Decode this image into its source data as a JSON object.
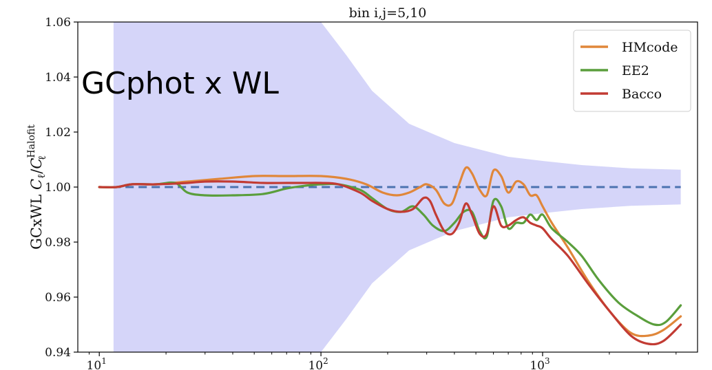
{
  "overlay_text": "GCphot x WL",
  "chart_data": {
    "type": "line",
    "title": "bin i,j=5,10",
    "xlabel": "",
    "ylabel": "GCxWL C_ℓ/C_ℓ^Halofit",
    "ylabel_parts": {
      "prefix": "GCxWL ",
      "c": "C",
      "l": "ℓ",
      "slash": "/",
      "sup": "Halofit"
    },
    "xscale": "log",
    "xlim": [
      8,
      5000
    ],
    "ylim": [
      0.94,
      1.06
    ],
    "x_ticks": [
      {
        "value": 10,
        "base": "10",
        "exp": "1"
      },
      {
        "value": 100,
        "base": "10",
        "exp": "2"
      },
      {
        "value": 1000,
        "base": "10",
        "exp": "3"
      }
    ],
    "y_ticks": [
      {
        "value": 0.94,
        "label": "0.94"
      },
      {
        "value": 0.96,
        "label": "0.96"
      },
      {
        "value": 0.98,
        "label": "0.98"
      },
      {
        "value": 1.0,
        "label": "1.00"
      },
      {
        "value": 1.02,
        "label": "1.02"
      },
      {
        "value": 1.04,
        "label": "1.04"
      },
      {
        "value": 1.06,
        "label": "1.06"
      }
    ],
    "reference_line": {
      "y": 1.0,
      "x_range": [
        10,
        4200
      ],
      "color": "#4c72b0",
      "style": "dashed"
    },
    "band": {
      "color": "#b9b9f5",
      "x": [
        11.6,
        11.6,
        40,
        60,
        80,
        100,
        130,
        170,
        250,
        400,
        700,
        1000,
        1500,
        2500,
        4200
      ],
      "upper": [
        1.06,
        1.06,
        1.06,
        1.06,
        1.06,
        1.06,
        1.048,
        1.035,
        1.023,
        1.016,
        1.011,
        1.0095,
        1.008,
        1.0068,
        1.0063
      ],
      "lower": [
        0.94,
        0.94,
        0.94,
        0.94,
        0.94,
        0.94,
        0.952,
        0.965,
        0.977,
        0.984,
        0.989,
        0.9905,
        0.992,
        0.9932,
        0.9937
      ]
    },
    "legend_position": "top-right",
    "series": [
      {
        "name": "HMcode",
        "color": "#e0873a",
        "x": [
          10,
          12,
          14,
          18,
          25,
          35,
          50,
          70,
          100,
          130,
          160,
          190,
          220,
          250,
          280,
          300,
          330,
          360,
          390,
          420,
          450,
          480,
          520,
          560,
          600,
          650,
          700,
          760,
          820,
          880,
          940,
          1000,
          1100,
          1300,
          1600,
          2000,
          2500,
          3000,
          3500,
          4200
        ],
        "y": [
          1.0,
          1.0,
          1.001,
          1.001,
          1.002,
          1.003,
          1.004,
          1.004,
          1.004,
          1.003,
          1.001,
          0.998,
          0.997,
          0.998,
          1.0,
          1.001,
          0.999,
          0.994,
          0.994,
          1.001,
          1.007,
          1.005,
          0.999,
          0.997,
          1.006,
          1.004,
          0.998,
          1.002,
          1.001,
          0.997,
          0.997,
          0.993,
          0.987,
          0.978,
          0.966,
          0.955,
          0.947,
          0.946,
          0.948,
          0.953
        ]
      },
      {
        "name": "EE2",
        "color": "#5a9e3c",
        "x": [
          10,
          12,
          14,
          18,
          22,
          25,
          30,
          40,
          55,
          70,
          85,
          100,
          120,
          150,
          170,
          200,
          230,
          260,
          290,
          320,
          360,
          400,
          440,
          480,
          520,
          560,
          600,
          650,
          700,
          760,
          820,
          880,
          940,
          1000,
          1100,
          1300,
          1500,
          1800,
          2200,
          2700,
          3200,
          3600,
          4200
        ],
        "y": [
          1.0,
          1.0,
          1.001,
          1.001,
          1.0015,
          0.998,
          0.997,
          0.997,
          0.9975,
          0.9995,
          1.0005,
          1.001,
          1.001,
          0.999,
          0.996,
          0.992,
          0.991,
          0.993,
          0.99,
          0.986,
          0.984,
          0.987,
          0.991,
          0.991,
          0.984,
          0.982,
          0.995,
          0.993,
          0.985,
          0.987,
          0.987,
          0.99,
          0.988,
          0.99,
          0.985,
          0.98,
          0.975,
          0.966,
          0.958,
          0.953,
          0.95,
          0.951,
          0.957
        ]
      },
      {
        "name": "Bacco",
        "color": "#c23b33",
        "x": [
          10,
          12,
          14,
          18,
          25,
          30,
          40,
          55,
          70,
          85,
          100,
          120,
          150,
          170,
          200,
          230,
          260,
          290,
          310,
          330,
          360,
          390,
          420,
          450,
          480,
          520,
          560,
          600,
          650,
          700,
          760,
          820,
          880,
          940,
          1000,
          1100,
          1300,
          1600,
          2000,
          2500,
          3000,
          3500,
          4200
        ],
        "y": [
          1.0,
          1.0,
          1.001,
          1.001,
          1.0015,
          1.002,
          1.002,
          1.0015,
          1.0015,
          1.0015,
          1.0015,
          1.001,
          0.998,
          0.995,
          0.992,
          0.991,
          0.992,
          0.996,
          0.995,
          0.99,
          0.984,
          0.983,
          0.987,
          0.994,
          0.99,
          0.983,
          0.983,
          0.993,
          0.986,
          0.986,
          0.988,
          0.989,
          0.987,
          0.986,
          0.985,
          0.981,
          0.975,
          0.965,
          0.955,
          0.946,
          0.943,
          0.944,
          0.95
        ]
      }
    ]
  }
}
